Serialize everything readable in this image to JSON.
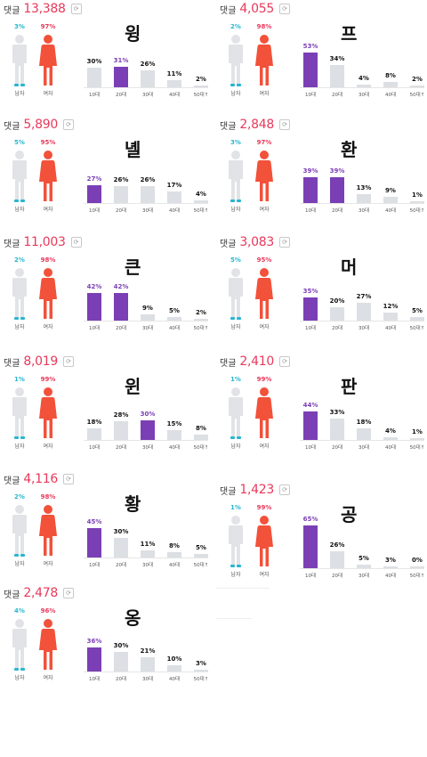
{
  "header_label": "댓글",
  "gender_labels": [
    "남자",
    "여자"
  ],
  "age_labels": [
    "10대",
    "20대",
    "30대",
    "40대",
    "50대↑"
  ],
  "colors": {
    "male": "#29b6cf",
    "female": "#f2513a",
    "highlight": "#7b3fb5",
    "bar": "#dcdfe3",
    "count": "#e8395a"
  },
  "panels": [
    {
      "count": "13,388",
      "glyph": "윙",
      "male_pct": "3%",
      "female_pct": "97%",
      "ages": [
        "30%",
        "31%",
        "26%",
        "11%",
        "2%"
      ],
      "values": [
        30,
        31,
        26,
        11,
        2
      ],
      "highlight": [
        1
      ]
    },
    {
      "count": "4,055",
      "glyph": "프",
      "male_pct": "2%",
      "female_pct": "98%",
      "ages": [
        "53%",
        "34%",
        "4%",
        "8%",
        "2%"
      ],
      "values": [
        53,
        34,
        4,
        8,
        2
      ],
      "highlight": [
        0
      ]
    },
    {
      "count": "5,890",
      "glyph": "녤",
      "male_pct": "5%",
      "female_pct": "95%",
      "ages": [
        "27%",
        "26%",
        "26%",
        "17%",
        "4%"
      ],
      "values": [
        27,
        26,
        26,
        17,
        4
      ],
      "highlight": [
        0
      ]
    },
    {
      "count": "2,848",
      "glyph": "환",
      "male_pct": "3%",
      "female_pct": "97%",
      "ages": [
        "39%",
        "39%",
        "13%",
        "9%",
        "1%"
      ],
      "values": [
        39,
        39,
        13,
        9,
        1
      ],
      "highlight": [
        0,
        1
      ]
    },
    {
      "count": "11,003",
      "glyph": "큰",
      "male_pct": "2%",
      "female_pct": "98%",
      "ages": [
        "42%",
        "42%",
        "9%",
        "5%",
        "2%"
      ],
      "values": [
        42,
        42,
        9,
        5,
        2
      ],
      "highlight": [
        0,
        1
      ]
    },
    {
      "count": "3,083",
      "glyph": "머",
      "male_pct": "5%",
      "female_pct": "95%",
      "ages": [
        "35%",
        "20%",
        "27%",
        "12%",
        "5%"
      ],
      "values": [
        35,
        20,
        27,
        12,
        5
      ],
      "highlight": [
        0
      ]
    },
    {
      "count": "8,019",
      "glyph": "윈",
      "male_pct": "1%",
      "female_pct": "99%",
      "ages": [
        "18%",
        "28%",
        "30%",
        "15%",
        "8%"
      ],
      "values": [
        18,
        28,
        30,
        15,
        8
      ],
      "highlight": [
        2
      ]
    },
    {
      "count": "2,410",
      "glyph": "판",
      "male_pct": "1%",
      "female_pct": "99%",
      "ages": [
        "44%",
        "33%",
        "18%",
        "4%",
        "1%"
      ],
      "values": [
        44,
        33,
        18,
        4,
        1
      ],
      "highlight": [
        0
      ]
    },
    {
      "count": "4,116",
      "glyph": "황",
      "male_pct": "2%",
      "female_pct": "98%",
      "ages": [
        "45%",
        "30%",
        "11%",
        "8%",
        "5%"
      ],
      "values": [
        45,
        30,
        11,
        8,
        5
      ],
      "highlight": [
        0
      ]
    },
    {
      "count": "1,423",
      "glyph": "공",
      "male_pct": "1%",
      "female_pct": "99%",
      "ages": [
        "65%",
        "26%",
        "5%",
        "3%",
        "0%"
      ],
      "values": [
        65,
        26,
        5,
        3,
        0
      ],
      "highlight": [
        0
      ]
    },
    {
      "count": "2,478",
      "glyph": "옹",
      "male_pct": "4%",
      "female_pct": "96%",
      "ages": [
        "36%",
        "30%",
        "21%",
        "10%",
        "3%"
      ],
      "values": [
        36,
        30,
        21,
        10,
        3
      ],
      "highlight": [
        0
      ]
    }
  ]
}
